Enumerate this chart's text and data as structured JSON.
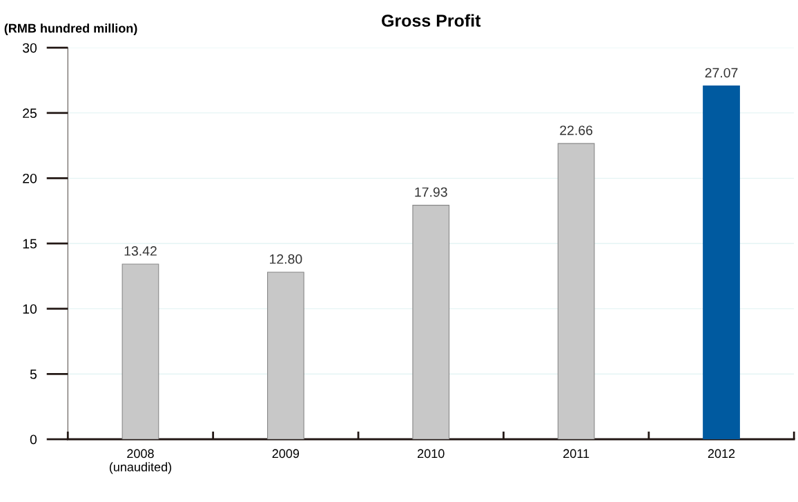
{
  "chart_data": {
    "type": "bar",
    "title": "Gross Profit",
    "ylabel": "(RMB hundred million)",
    "categories": [
      "2008\n(unaudited)",
      "2009",
      "2010",
      "2011",
      "2012"
    ],
    "values": [
      13.42,
      12.8,
      17.93,
      22.66,
      27.07
    ],
    "colors": [
      "#c8c8c8",
      "#c8c8c8",
      "#c8c8c8",
      "#c8c8c8",
      "#005aa0"
    ],
    "value_labels": [
      "13.42",
      "12.80",
      "17.93",
      "22.66",
      "27.07"
    ],
    "ylim": [
      0,
      30
    ],
    "yticks": [
      0,
      5,
      10,
      15,
      20,
      25,
      30
    ],
    "grid": "y"
  }
}
